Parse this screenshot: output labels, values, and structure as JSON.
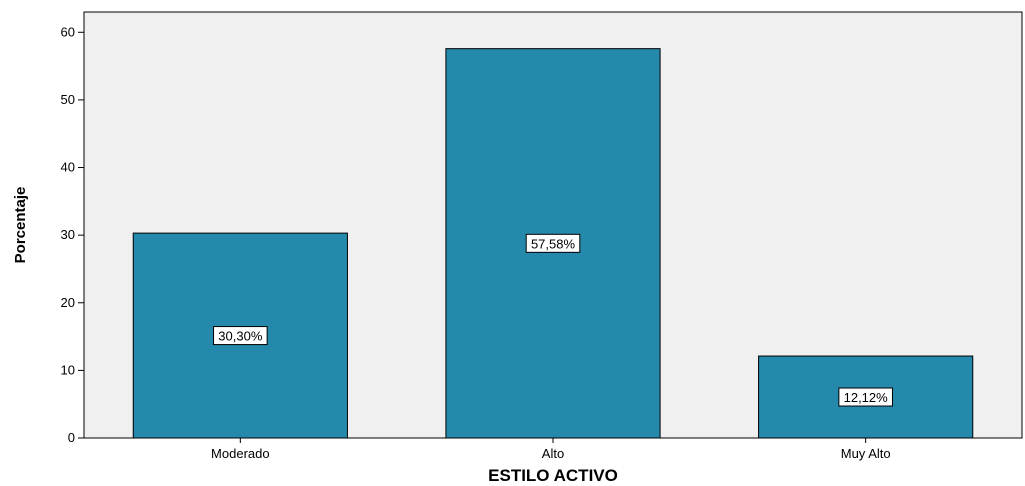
{
  "chart_data": {
    "type": "bar",
    "categories": [
      "Moderado",
      "Alto",
      "Muy Alto"
    ],
    "values": [
      30.3,
      57.58,
      12.12
    ],
    "data_labels": [
      "30,30%",
      "57,58%",
      "12,12%"
    ],
    "xlabel": "ESTILO ACTIVO",
    "ylabel": "Porcentaje",
    "ylim": [
      0,
      63
    ],
    "yticks": [
      0,
      10,
      20,
      30,
      40,
      50,
      60
    ],
    "grid": false,
    "colors": {
      "bar": "#2589ab",
      "plot_background": "#f0f0f0"
    }
  }
}
